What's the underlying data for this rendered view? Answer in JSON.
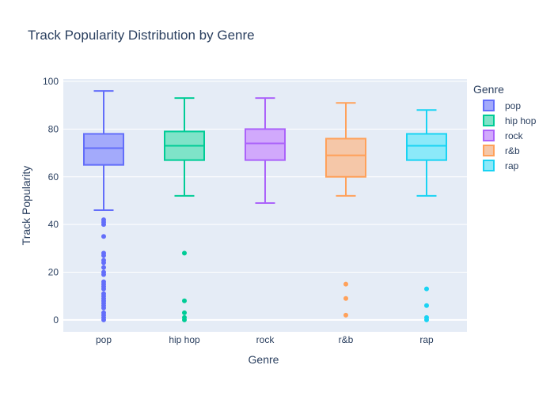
{
  "chart_data": {
    "type": "box",
    "title": "Track Popularity Distribution by Genre",
    "xlabel": "Genre",
    "ylabel": "Track Popularity",
    "categories": [
      "pop",
      "hip hop",
      "rock",
      "r&b",
      "rap"
    ],
    "ylim": [
      -5,
      101
    ],
    "yticks": [
      0,
      20,
      40,
      60,
      80,
      100
    ],
    "grid": true,
    "legend": {
      "title": "Genre",
      "placement": "right"
    },
    "series": [
      {
        "name": "pop",
        "color": "#636efa",
        "fill": "#a3aafb",
        "q1": 65,
        "median": 72,
        "q3": 78,
        "lowerfence": 46,
        "upperfence": 96,
        "outliers": [
          42,
          41,
          40,
          35,
          28,
          27,
          25,
          24,
          22,
          20,
          19,
          16,
          15,
          14,
          13,
          11,
          10,
          9,
          8,
          7,
          6,
          5,
          3,
          2,
          1,
          0
        ]
      },
      {
        "name": "hip hop",
        "color": "#00cc96",
        "fill": "#7fe3c8",
        "q1": 67,
        "median": 73,
        "q3": 79,
        "lowerfence": 52,
        "upperfence": 93,
        "outliers": [
          28,
          8,
          3,
          1,
          0
        ]
      },
      {
        "name": "rock",
        "color": "#ab63fa",
        "fill": "#d1a9fc",
        "q1": 67,
        "median": 74,
        "q3": 80,
        "lowerfence": 49,
        "upperfence": 93,
        "outliers": []
      },
      {
        "name": "r&b",
        "color": "#ffa15a",
        "fill": "#f5c7a8",
        "q1": 60,
        "median": 69,
        "q3": 76,
        "lowerfence": 52,
        "upperfence": 91,
        "outliers": [
          15,
          9,
          2
        ]
      },
      {
        "name": "rap",
        "color": "#19d3f3",
        "fill": "#8ce9f9",
        "q1": 67,
        "median": 73,
        "q3": 78,
        "lowerfence": 52,
        "upperfence": 88,
        "outliers": [
          13,
          6,
          1,
          0
        ]
      }
    ]
  }
}
